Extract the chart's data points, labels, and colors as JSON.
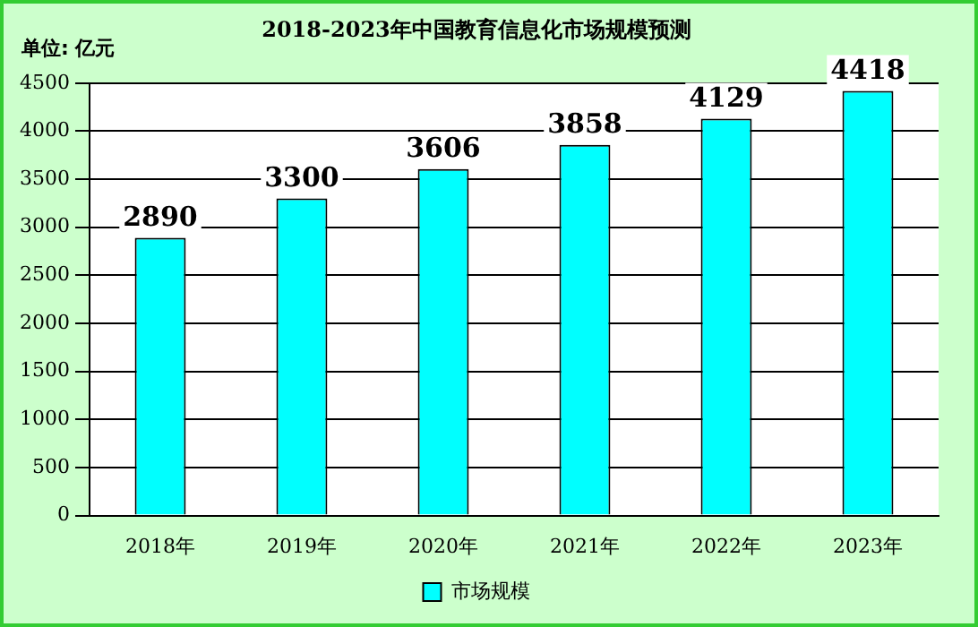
{
  "chart_data": {
    "type": "bar",
    "title": "2018-2023年中国教育信息化市场规模预测",
    "annotations": [
      "单位: 亿元"
    ],
    "categories": [
      "2018年",
      "2019年",
      "2020年",
      "2021年",
      "2022年",
      "2023年"
    ],
    "series": [
      {
        "name": "市场规模",
        "color": "#00ffff",
        "values": [
          2890,
          3300,
          3606,
          3858,
          4129,
          4418
        ]
      }
    ],
    "ylim": [
      0,
      4500
    ],
    "yticks": [
      0,
      500,
      1000,
      1500,
      2000,
      2500,
      3000,
      3500,
      4000,
      4500
    ],
    "grid": "y",
    "legend": "bottom",
    "data_labels": true
  }
}
